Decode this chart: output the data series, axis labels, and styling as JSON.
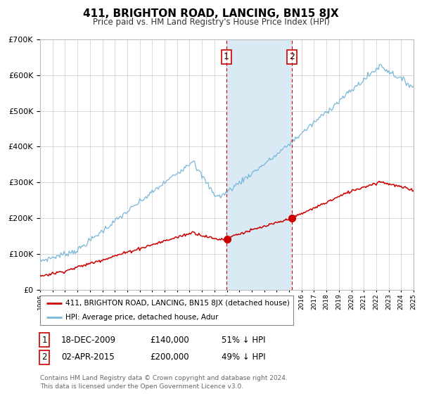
{
  "title": "411, BRIGHTON ROAD, LANCING, BN15 8JX",
  "subtitle": "Price paid vs. HM Land Registry's House Price Index (HPI)",
  "legend_line1": "411, BRIGHTON ROAD, LANCING, BN15 8JX (detached house)",
  "legend_line2": "HPI: Average price, detached house, Adur",
  "annotation1_date": "18-DEC-2009",
  "annotation1_price": "£140,000",
  "annotation1_pct": "51% ↓ HPI",
  "annotation2_date": "02-APR-2015",
  "annotation2_price": "£200,000",
  "annotation2_pct": "49% ↓ HPI",
  "footer": "Contains HM Land Registry data © Crown copyright and database right 2024.\nThis data is licensed under the Open Government Licence v3.0.",
  "hpi_color": "#7ab8d9",
  "price_color": "#cc0000",
  "shade_color": "#daeaf5",
  "grid_color": "#cccccc",
  "ylim_max": 700000,
  "transaction1_year": 2009.96,
  "transaction2_year": 2015.25,
  "transaction1_price": 140000,
  "transaction2_price": 200000
}
